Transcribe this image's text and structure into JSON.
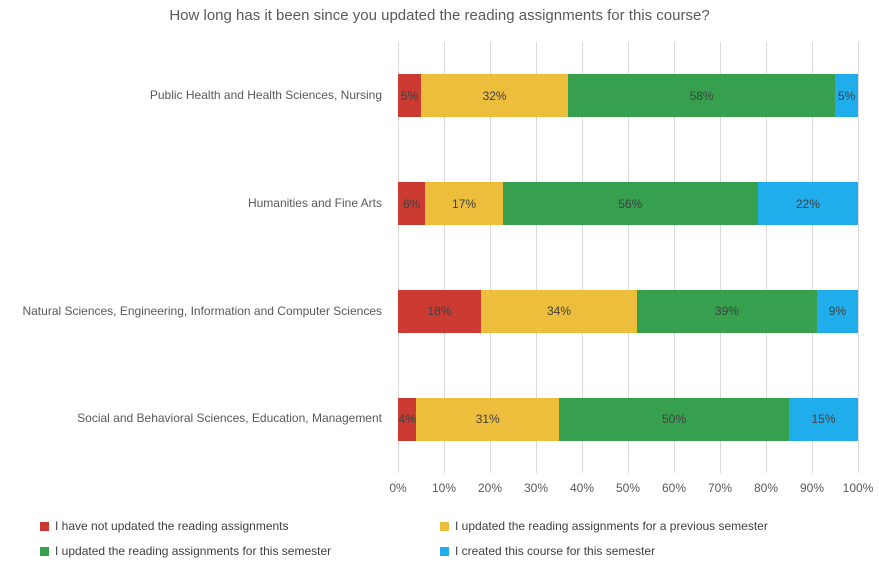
{
  "chart_data": {
    "type": "bar",
    "subtype": "stacked-horizontal",
    "title": "How long has it been since you updated the reading assignments for this course?",
    "categories": [
      "Public Health and Health Sciences, Nursing",
      "Humanities and Fine Arts",
      "Natural Sciences, Engineering, Information and Computer Sciences",
      "Social and Behavioral Sciences, Education, Management"
    ],
    "series": [
      {
        "name": "I have not updated the reading assignments",
        "color": "#cb3b32",
        "values": [
          5,
          6,
          18,
          4
        ]
      },
      {
        "name": "I updated the reading assignments for a previous semester",
        "color": "#ecbe3b",
        "values": [
          32,
          17,
          34,
          31
        ]
      },
      {
        "name": "I updated the reading assignments for this semester",
        "color": "#36a04f",
        "values": [
          58,
          56,
          39,
          50
        ]
      },
      {
        "name": "I created this course for this semester",
        "color": "#1faeeb",
        "values": [
          5,
          22,
          9,
          15
        ]
      }
    ],
    "data_label_suffix": "%",
    "x_ticks": [
      "0%",
      "10%",
      "20%",
      "30%",
      "40%",
      "50%",
      "60%",
      "70%",
      "80%",
      "90%",
      "100%"
    ],
    "xlim": [
      0,
      100
    ],
    "grid": "vertical",
    "gridline_color": "#d9d9d9",
    "legend_position": "bottom",
    "legend_columns": 2
  }
}
